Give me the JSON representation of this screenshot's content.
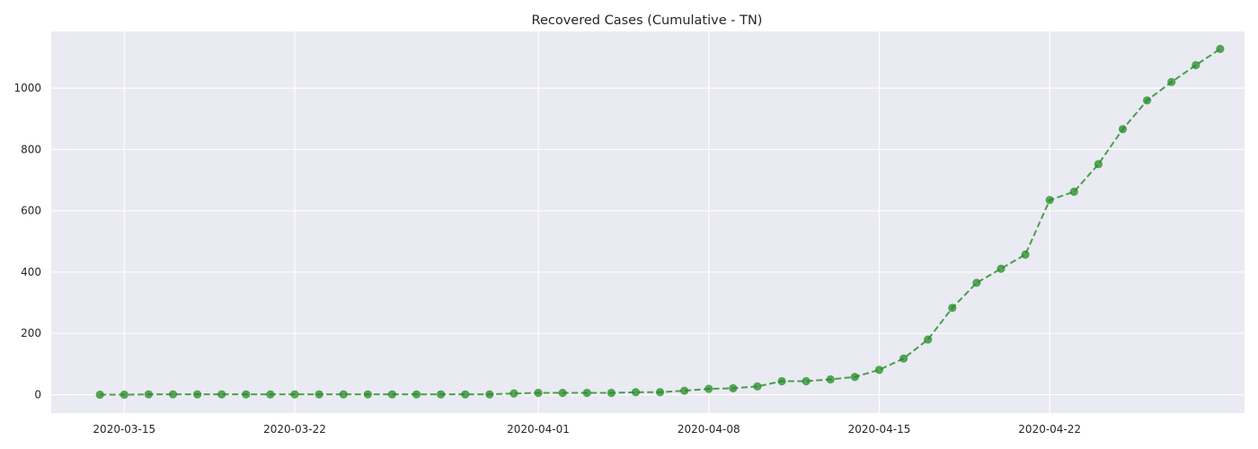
{
  "chart_data": {
    "type": "line",
    "title": "Recovered Cases (Cumulative - TN)",
    "xlabel": "",
    "ylabel": "",
    "xlim": [
      "2020-03-12",
      "2020-04-30"
    ],
    "ylim": [
      -60,
      1185
    ],
    "grid": true,
    "x_ticks": [
      "2020-03-15",
      "2020-03-22",
      "2020-04-01",
      "2020-04-08",
      "2020-04-15",
      "2020-04-22"
    ],
    "y_ticks": [
      0,
      200,
      400,
      600,
      800,
      1000
    ],
    "x": [
      "2020-03-14",
      "2020-03-15",
      "2020-03-16",
      "2020-03-17",
      "2020-03-18",
      "2020-03-19",
      "2020-03-20",
      "2020-03-21",
      "2020-03-22",
      "2020-03-23",
      "2020-03-24",
      "2020-03-25",
      "2020-03-26",
      "2020-03-27",
      "2020-03-28",
      "2020-03-29",
      "2020-03-30",
      "2020-03-31",
      "2020-04-01",
      "2020-04-02",
      "2020-04-03",
      "2020-04-04",
      "2020-04-05",
      "2020-04-06",
      "2020-04-07",
      "2020-04-08",
      "2020-04-09",
      "2020-04-10",
      "2020-04-11",
      "2020-04-12",
      "2020-04-13",
      "2020-04-14",
      "2020-04-15",
      "2020-04-16",
      "2020-04-17",
      "2020-04-18",
      "2020-04-19",
      "2020-04-20",
      "2020-04-21",
      "2020-04-22",
      "2020-04-23",
      "2020-04-24",
      "2020-04-25",
      "2020-04-26",
      "2020-04-27",
      "2020-04-28",
      "2020-04-29"
    ],
    "series": [
      {
        "color": "#228b22",
        "values": [
          0,
          0,
          1,
          1,
          1,
          1,
          1,
          1,
          1,
          1,
          1,
          1,
          1,
          1,
          1,
          1,
          1,
          4,
          6,
          6,
          6,
          6,
          8,
          8,
          13,
          19,
          21,
          27,
          44,
          44,
          50,
          58,
          81,
          118,
          180,
          283,
          365,
          411,
          457,
          635,
          662,
          752,
          866,
          960,
          1020,
          1075,
          1128
        ]
      }
    ]
  }
}
